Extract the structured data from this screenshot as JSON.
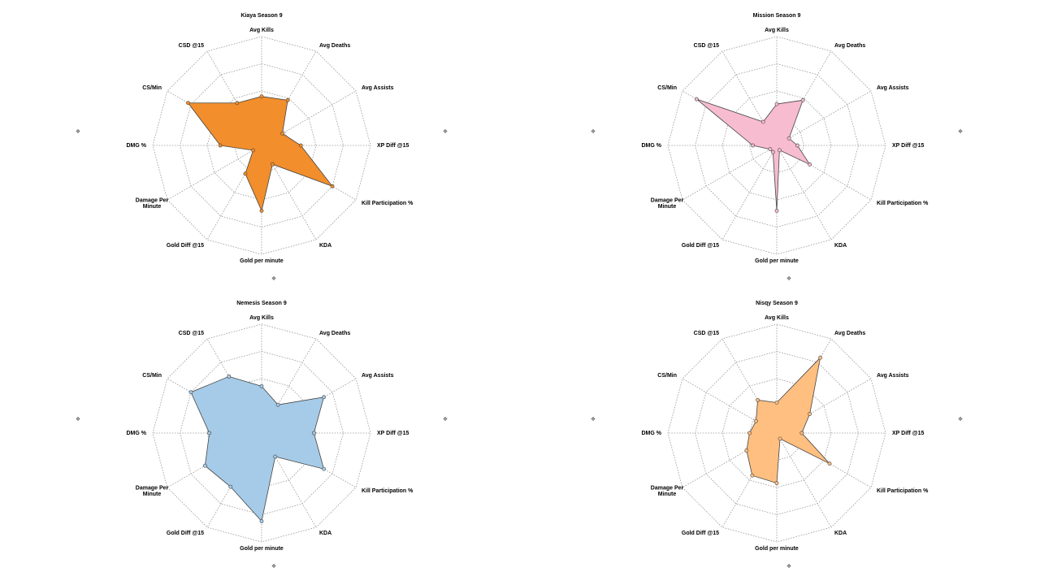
{
  "pin_icon": "pin-icon",
  "chart_data": [
    {
      "type": "radar",
      "title": "Kiaya Season 9",
      "axes": [
        "Avg Kills",
        "Avg Deaths",
        "Avg Assists",
        "XP Diff @15",
        "Kill Participation %",
        "KDA",
        "Gold per minute",
        "Gold Diff @15",
        "Damage Per Minute",
        "DMG %",
        "CS/Min",
        "CSD @15"
      ],
      "values": [
        0.45,
        0.48,
        0.22,
        0.36,
        0.75,
        0.2,
        0.6,
        0.3,
        0.09,
        0.38,
        0.78,
        0.45
      ],
      "range": [
        0,
        1
      ],
      "color": "#f28e2b",
      "grid": true
    },
    {
      "type": "radar",
      "title": "Mission Season 9",
      "axes": [
        "Avg Kills",
        "Avg Deaths",
        "Avg Assists",
        "XP Diff @15",
        "Kill Participation %",
        "KDA",
        "Gold per minute",
        "Gold Diff @15",
        "Damage Per Minute",
        "DMG %",
        "CS/Min",
        "CSD @15"
      ],
      "values": [
        0.38,
        0.48,
        0.13,
        0.19,
        0.35,
        0.05,
        0.6,
        0.07,
        0.07,
        0.22,
        0.85,
        0.25
      ],
      "range": [
        0,
        1
      ],
      "color": "#f7bcd0",
      "grid": true
    },
    {
      "type": "radar",
      "title": "Nemesis Season 9",
      "axes": [
        "Avg Kills",
        "Avg Deaths",
        "Avg Assists",
        "XP Diff @15",
        "Kill Participation %",
        "KDA",
        "Gold per minute",
        "Gold Diff @15",
        "Damage Per Minute",
        "DMG %",
        "CS/Min",
        "CSD @15"
      ],
      "values": [
        0.43,
        0.3,
        0.66,
        0.48,
        0.66,
        0.25,
        0.81,
        0.57,
        0.6,
        0.48,
        0.75,
        0.6
      ],
      "range": [
        0,
        1
      ],
      "color": "#a6cbe8",
      "grid": true
    },
    {
      "type": "radar",
      "title": "Nisqy Season 9",
      "axes": [
        "Avg Kills",
        "Avg Deaths",
        "Avg Assists",
        "XP Diff @15",
        "Kill Participation %",
        "KDA",
        "Gold per minute",
        "Gold Diff @15",
        "Damage Per Minute",
        "DMG %",
        "CS/Min",
        "CSD @15"
      ],
      "values": [
        0.28,
        0.8,
        0.35,
        0.23,
        0.56,
        0.06,
        0.46,
        0.45,
        0.32,
        0.25,
        0.22,
        0.35
      ],
      "range": [
        0,
        1
      ],
      "color": "#ffbf80",
      "grid": true
    }
  ]
}
